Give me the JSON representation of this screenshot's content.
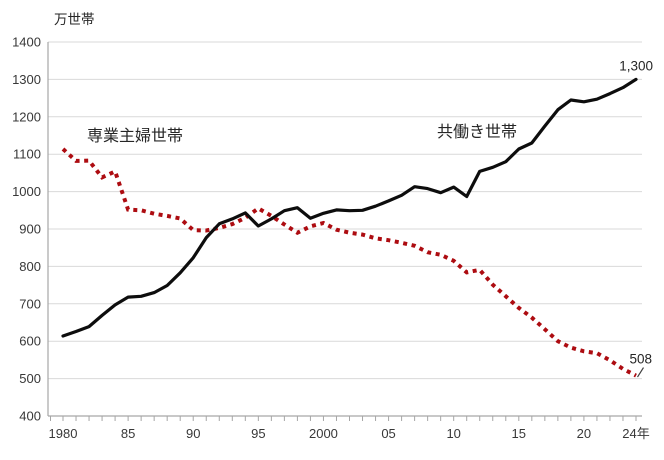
{
  "chart_data": {
    "type": "line",
    "title": "万世帯",
    "xlabel": "",
    "ylabel": "万世帯",
    "ylim": [
      400,
      1400
    ],
    "y_ticks": [
      400,
      500,
      600,
      700,
      800,
      900,
      1000,
      1100,
      1200,
      1300,
      1400
    ],
    "grid": "horizontal",
    "legend": "inline-annotations",
    "years": [
      1980,
      1981,
      1982,
      1983,
      1984,
      1985,
      1986,
      1987,
      1988,
      1989,
      1990,
      1991,
      1992,
      1993,
      1994,
      1995,
      1996,
      1997,
      1998,
      1999,
      2000,
      2001,
      2002,
      2003,
      2004,
      2005,
      2006,
      2007,
      2008,
      2009,
      2010,
      2011,
      2012,
      2013,
      2014,
      2015,
      2016,
      2017,
      2018,
      2019,
      2020,
      2021,
      2022,
      2023,
      2024
    ],
    "x_tick_labels": [
      {
        "text": "1980",
        "year": 1980
      },
      {
        "text": "85",
        "year": 1985
      },
      {
        "text": "90",
        "year": 1990
      },
      {
        "text": "95",
        "year": 1995
      },
      {
        "text": "2000",
        "year": 2000
      },
      {
        "text": "05",
        "year": 2005
      },
      {
        "text": "10",
        "year": 2010
      },
      {
        "text": "15",
        "year": 2015
      },
      {
        "text": "20",
        "year": 2020
      },
      {
        "text": "24年",
        "year": 2024
      }
    ],
    "series": [
      {
        "name": "専業主婦世帯",
        "style": "dotted",
        "color": "#ad0c11",
        "end_label": "508",
        "values": [
          1114,
          1082,
          1083,
          1038,
          1054,
          952,
          950,
          941,
          935,
          928,
          897,
          896,
          903,
          913,
          930,
          955,
          935,
          912,
          890,
          907,
          916,
          898,
          890,
          885,
          875,
          870,
          863,
          855,
          838,
          831,
          815,
          784,
          791,
          751,
          720,
          689,
          663,
          632,
          600,
          583,
          573,
          568,
          549,
          526,
          508
        ]
      },
      {
        "name": "共働き世帯",
        "style": "solid",
        "color": "#0d0d0d",
        "end_label": "1,300",
        "values": [
          614,
          626,
          639,
          669,
          697,
          718,
          720,
          730,
          749,
          783,
          823,
          877,
          914,
          927,
          943,
          908,
          927,
          949,
          957,
          929,
          942,
          951,
          949,
          950,
          961,
          975,
          990,
          1013,
          1008,
          997,
          1012,
          987,
          1054,
          1065,
          1080,
          1114,
          1130,
          1175,
          1219,
          1245,
          1240,
          1247,
          1262,
          1278,
          1300
        ]
      }
    ]
  },
  "annotations": {
    "axis_title": "万世帯",
    "sengyo_label": "専業主婦世帯",
    "tomobataraki_label": "共働き世帯",
    "end_label_tomobataraki": "1,300",
    "end_label_sengyo": "508"
  },
  "colors": {
    "background": "#ffffff",
    "gridline": "#d9d9d9",
    "axis": "#a6a6a6",
    "tick": "#a6a6a6",
    "text": "#383838",
    "series_sengyo": "#ad0c11",
    "series_tomobataraki": "#0d0d0d"
  }
}
